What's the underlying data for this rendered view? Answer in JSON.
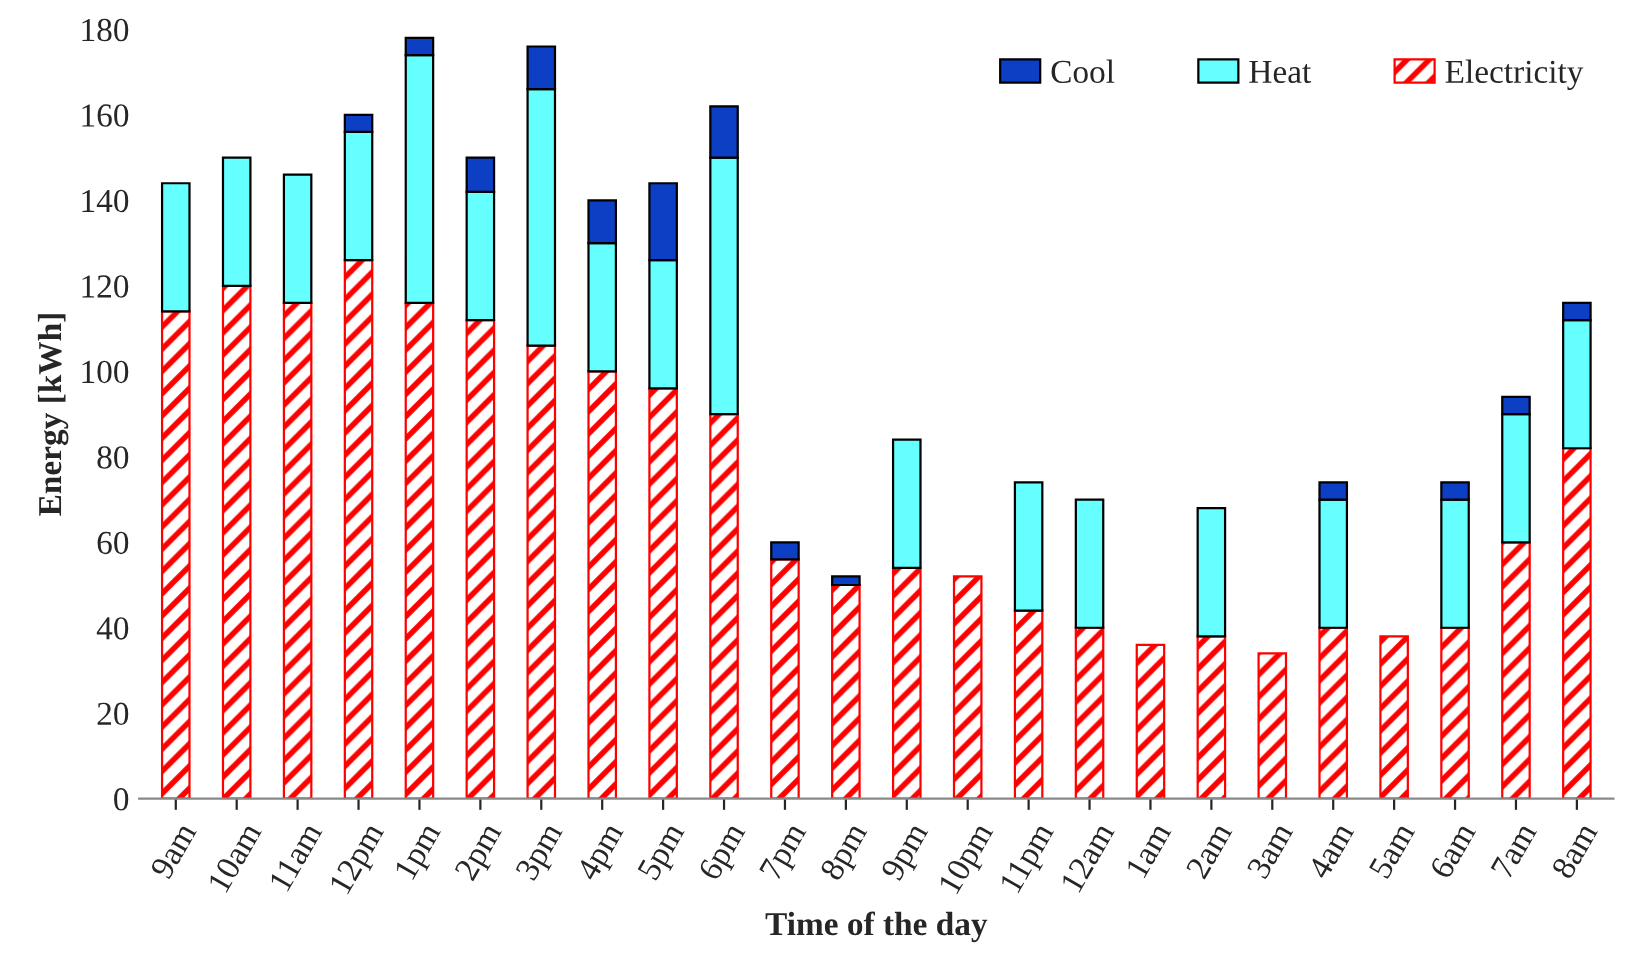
{
  "chart_data": {
    "type": "bar",
    "stacked": true,
    "xlabel": "Time of the day",
    "ylabel": "Energy [kWh]",
    "categories": [
      "9am",
      "10am",
      "11am",
      "12pm",
      "1pm",
      "2pm",
      "3pm",
      "4pm",
      "5pm",
      "6pm",
      "7pm",
      "8pm",
      "9pm",
      "10pm",
      "11pm",
      "12am",
      "1am",
      "2am",
      "3am",
      "4am",
      "5am",
      "6am",
      "7am",
      "8am"
    ],
    "series": [
      {
        "name": "Electricity",
        "color": "#ff0000",
        "values": [
          114,
          120,
          116,
          126,
          116,
          112,
          106,
          100,
          96,
          90,
          56,
          50,
          54,
          52,
          44,
          40,
          36,
          38,
          34,
          40,
          38,
          40,
          60,
          82
        ]
      },
      {
        "name": "Heat",
        "color": "#66ffff",
        "values": [
          30,
          30,
          30,
          30,
          58,
          30,
          60,
          30,
          30,
          60,
          null,
          null,
          30,
          null,
          30,
          30,
          null,
          30,
          null,
          30,
          null,
          30,
          30,
          30
        ]
      },
      {
        "name": "Cool",
        "color": "#0d3fc4",
        "values": [
          null,
          null,
          null,
          4,
          4,
          8,
          10,
          10,
          18,
          12,
          4,
          2,
          null,
          null,
          null,
          null,
          null,
          null,
          null,
          4,
          null,
          4,
          4,
          4
        ]
      }
    ],
    "ylim": [
      0,
      180
    ],
    "yticks": [
      0,
      20,
      40,
      60,
      80,
      100,
      120,
      140,
      160,
      180
    ],
    "legend": "top right",
    "grid": false
  }
}
